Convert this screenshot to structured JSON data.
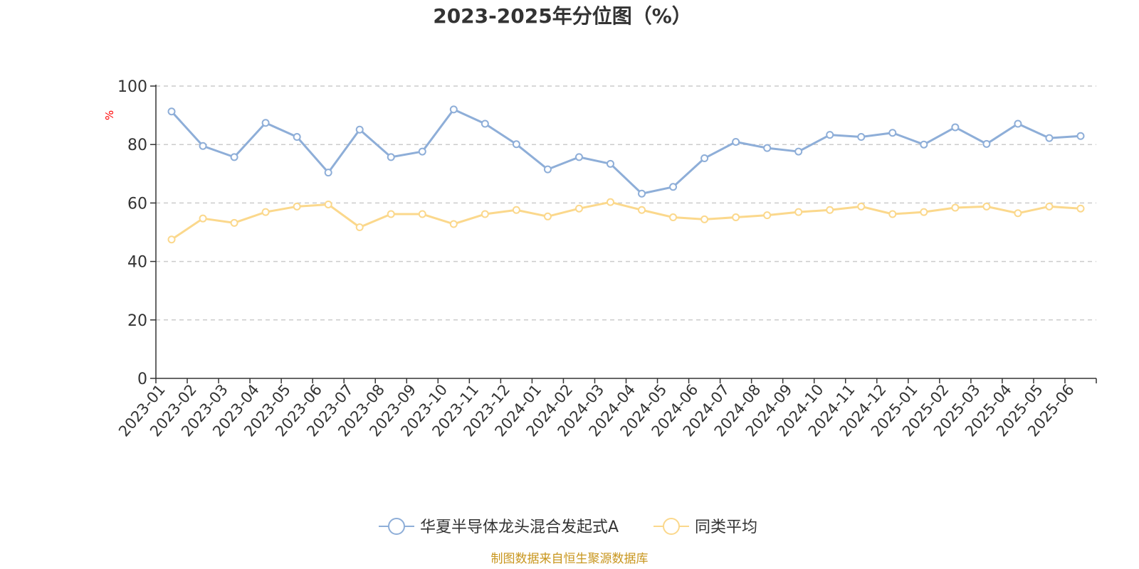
{
  "chart_data": {
    "type": "line",
    "title": "2023-2025年分位图（%）",
    "ylabel": "%",
    "xlabel": "",
    "ylim": [
      0,
      100
    ],
    "yticks": [
      0,
      20,
      40,
      60,
      80,
      100
    ],
    "grid": true,
    "legend_position": "bottom-center",
    "categories": [
      "2023-01",
      "2023-02",
      "2023-03",
      "2023-04",
      "2023-05",
      "2023-06",
      "2023-07",
      "2023-08",
      "2023-09",
      "2023-10",
      "2023-11",
      "2023-12",
      "2024-01",
      "2024-02",
      "2024-03",
      "2024-04",
      "2024-05",
      "2024-06",
      "2024-07",
      "2024-08",
      "2024-09",
      "2024-10",
      "2024-11",
      "2024-12",
      "2025-01",
      "2025-02",
      "2025-03",
      "2025-04",
      "2025-05",
      "2025-06"
    ],
    "series": [
      {
        "name": "华夏半导体龙头混合发起式A",
        "color": "#8eaed8",
        "values": [
          91.3,
          79.5,
          75.7,
          87.4,
          82.6,
          70.4,
          85.1,
          75.7,
          77.6,
          92.0,
          87.1,
          80.1,
          71.5,
          75.7,
          73.4,
          63.2,
          65.5,
          75.3,
          80.9,
          78.8,
          77.6,
          83.3,
          82.6,
          84.0,
          80.0,
          85.9,
          80.2,
          87.1,
          82.2,
          82.9
        ]
      },
      {
        "name": "同类平均",
        "color": "#fbd88c",
        "values": [
          47.5,
          54.7,
          53.2,
          56.9,
          58.8,
          59.5,
          51.7,
          56.2,
          56.2,
          52.8,
          56.2,
          57.6,
          55.4,
          58.1,
          60.3,
          57.6,
          55.1,
          54.4,
          55.1,
          55.8,
          56.9,
          57.6,
          58.8,
          56.2,
          56.9,
          58.4,
          58.8,
          56.5,
          58.8,
          58.1
        ]
      }
    ]
  },
  "footer": {
    "source": "制图数据来自恒生聚源数据库"
  }
}
